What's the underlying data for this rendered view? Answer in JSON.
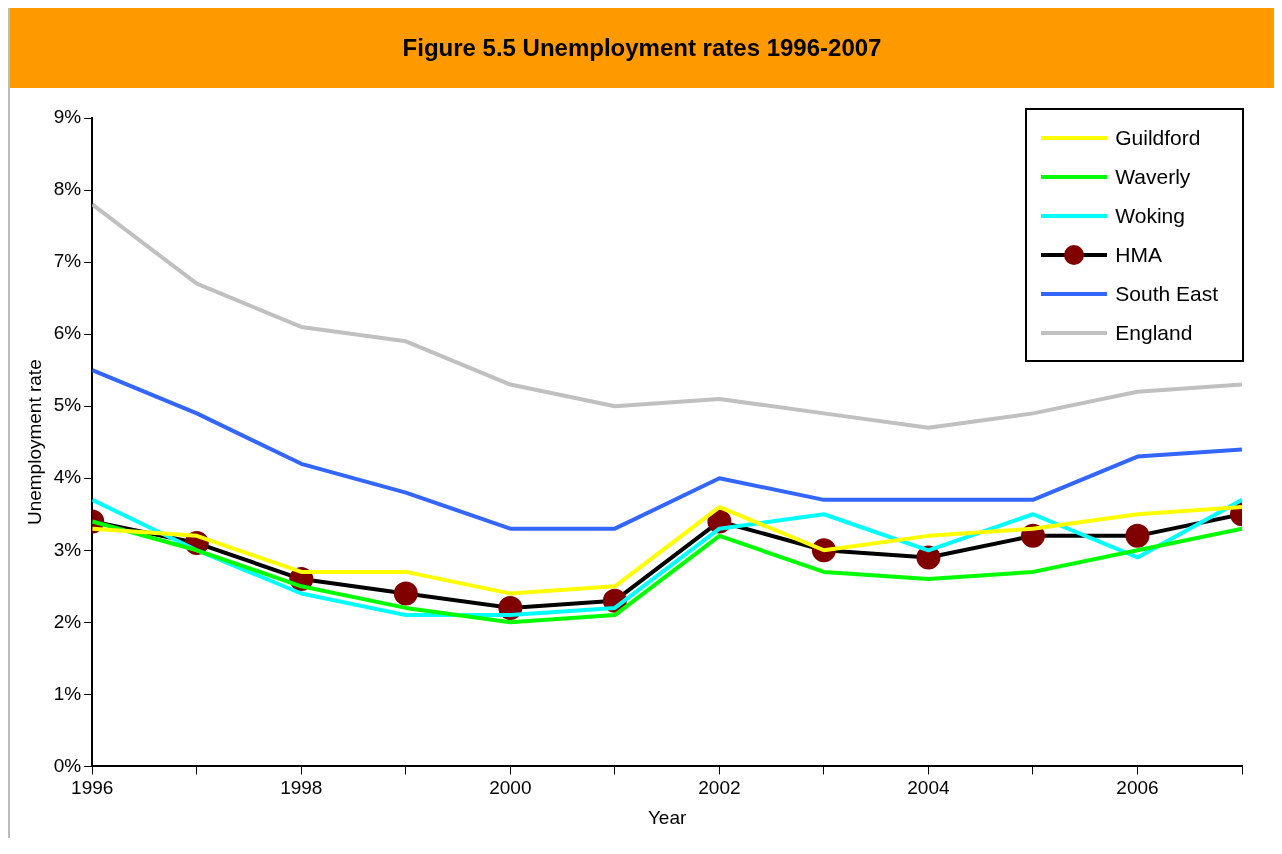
{
  "chart_data": {
    "type": "line",
    "title": "Figure 5.5 Unemployment rates 1996-2007",
    "xlabel": "Year",
    "ylabel": "Unemployment rate",
    "x": [
      1996,
      1997,
      1998,
      1999,
      2000,
      2001,
      2002,
      2003,
      2004,
      2005,
      2006,
      2007
    ],
    "xlim": [
      1996,
      2007
    ],
    "xticks": [
      1996,
      {
        "value": 1997,
        "label": null
      },
      1998,
      {
        "value": 1999,
        "label": null
      },
      2000,
      {
        "value": 2001,
        "label": null
      },
      2002,
      {
        "value": 2003,
        "label": null
      },
      2004,
      {
        "value": 2005,
        "label": null
      },
      2006,
      {
        "value": 2007,
        "label": null
      }
    ],
    "ylim": [
      0,
      9
    ],
    "yticks": [
      {
        "value": 0,
        "label": "0%"
      },
      {
        "value": 1,
        "label": "1%"
      },
      {
        "value": 2,
        "label": "2%"
      },
      {
        "value": 3,
        "label": "3%"
      },
      {
        "value": 4,
        "label": "4%"
      },
      {
        "value": 5,
        "label": "5%"
      },
      {
        "value": 6,
        "label": "6%"
      },
      {
        "value": 7,
        "label": "7%"
      },
      {
        "value": 8,
        "label": "8%"
      },
      {
        "value": 9,
        "label": "9%"
      }
    ],
    "grid": false,
    "legend": "top right",
    "marker": "none",
    "line_style": "solid",
    "series": [
      {
        "name": "Guildford",
        "color": "#ffff00",
        "values": [
          3.3,
          3.2,
          2.7,
          2.7,
          2.4,
          2.5,
          3.6,
          3.0,
          3.2,
          3.3,
          3.5,
          3.6
        ]
      },
      {
        "name": "Waverly",
        "color": "#00ff00",
        "values": [
          3.4,
          3.0,
          2.5,
          2.2,
          2.0,
          2.1,
          3.2,
          2.7,
          2.6,
          2.7,
          3.0,
          3.3
        ]
      },
      {
        "name": "Woking",
        "color": "#00ffff",
        "values": [
          3.7,
          3.0,
          2.4,
          2.1,
          2.1,
          2.2,
          3.3,
          3.5,
          3.0,
          3.5,
          2.9,
          3.7
        ]
      },
      {
        "name": "HMA",
        "color": "#000000",
        "marker": "circle",
        "colors": [
          "#800000",
          "#800000",
          "#800000",
          "#800000",
          "#800000",
          "#800000",
          "#800000",
          "#800000",
          "#800000",
          "#800000",
          "#800000",
          "#800000"
        ],
        "values": [
          3.4,
          3.1,
          2.6,
          2.4,
          2.2,
          2.3,
          3.4,
          3.0,
          2.9,
          3.2,
          3.2,
          3.5
        ]
      },
      {
        "name": "South East",
        "color": "#3366ff",
        "values": [
          5.5,
          4.9,
          4.2,
          3.8,
          3.3,
          3.3,
          4.0,
          3.7,
          3.7,
          3.7,
          4.3,
          4.4
        ]
      },
      {
        "name": "England",
        "color": "#c0c0c0",
        "values": [
          7.8,
          6.7,
          6.1,
          5.9,
          5.3,
          5.0,
          5.1,
          4.9,
          4.7,
          4.9,
          5.2,
          5.3
        ]
      }
    ]
  }
}
